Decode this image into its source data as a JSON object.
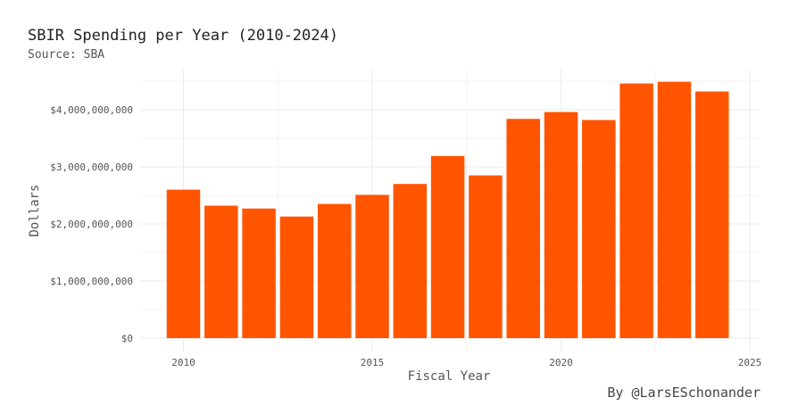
{
  "chart_data": {
    "type": "bar",
    "title": "SBIR Spending per Year (2010-2024)",
    "subtitle": "Source: SBA",
    "caption": "By @LarsESchonander",
    "xlabel": "Fiscal Year",
    "ylabel": "Dollars",
    "x": [
      2010,
      2011,
      2012,
      2013,
      2014,
      2015,
      2016,
      2017,
      2018,
      2019,
      2020,
      2021,
      2022,
      2023,
      2024
    ],
    "values": [
      2600000000,
      2320000000,
      2270000000,
      2130000000,
      2350000000,
      2510000000,
      2700000000,
      3190000000,
      2850000000,
      3840000000,
      3960000000,
      3820000000,
      4460000000,
      4490000000,
      4320000000
    ],
    "xlim": [
      2009.25,
      2025.0
    ],
    "ylim": [
      0,
      4500000000
    ],
    "xticks": [
      2010,
      2015,
      2020,
      2025
    ],
    "xtick_labels": [
      "2010",
      "2015",
      "2020",
      "2025"
    ],
    "yticks": [
      0,
      1000000000,
      2000000000,
      3000000000,
      4000000000
    ],
    "ytick_labels": [
      "$0",
      "$1,000,000,000",
      "$2,000,000,000",
      "$3,000,000,000",
      "$4,000,000,000"
    ],
    "bar_color": "#ff5500",
    "grid": true,
    "legend": "none"
  }
}
